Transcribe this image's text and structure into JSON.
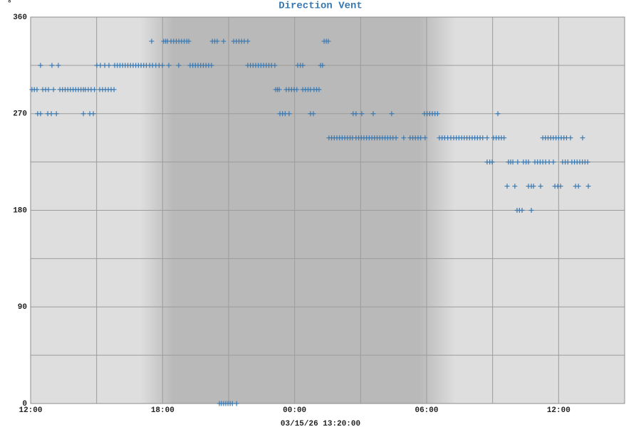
{
  "chart_data": {
    "type": "scatter",
    "title": "Direction Vent",
    "y_unit": "°",
    "x_label": "03/15/26 13:20:00",
    "color": "#3a78b0",
    "grid": true,
    "xlim": [
      0,
      27
    ],
    "xticks": [
      {
        "value": 0,
        "label": "12:00"
      },
      {
        "value": 6,
        "label": "18:00"
      },
      {
        "value": 12,
        "label": "00:00"
      },
      {
        "value": 18,
        "label": "06:00"
      },
      {
        "value": 24,
        "label": "12:00"
      }
    ],
    "ylim": [
      0,
      360
    ],
    "yticks": [
      0,
      90,
      180,
      270,
      360
    ],
    "x": [
      0.06,
      0.17,
      0.29,
      0.55,
      0.68,
      0.81,
      1.04,
      1.33,
      1.45,
      1.57,
      1.69,
      1.81,
      1.93,
      2.05,
      2.17,
      2.29,
      2.4,
      2.49,
      2.62,
      2.75,
      2.9,
      3.14,
      3.27,
      3.4,
      3.53,
      3.66,
      3.79,
      11.14,
      11.22,
      11.3,
      11.62,
      11.74,
      11.86,
      11.98,
      12.1,
      12.37,
      12.49,
      12.61,
      12.72,
      12.88,
      13.0,
      13.11,
      0.32,
      0.45,
      0.78,
      0.94,
      1.17,
      2.4,
      2.69,
      2.85,
      11.33,
      11.45,
      11.57,
      11.75,
      12.72,
      12.85,
      14.66,
      14.79,
      15.05,
      15.57,
      16.41,
      17.9,
      18.02,
      18.14,
      18.26,
      18.38,
      18.5,
      21.24,
      0.45,
      0.97,
      1.26,
      3.01,
      3.17,
      3.37,
      3.56,
      3.82,
      3.94,
      4.06,
      4.18,
      4.3,
      4.42,
      4.54,
      4.66,
      4.78,
      4.9,
      5.02,
      5.14,
      5.26,
      5.41,
      5.54,
      5.69,
      5.84,
      5.99,
      6.28,
      6.73,
      7.25,
      7.37,
      7.49,
      7.61,
      7.73,
      7.85,
      7.97,
      8.09,
      8.22,
      9.87,
      9.99,
      10.11,
      10.23,
      10.35,
      10.47,
      10.59,
      10.71,
      10.83,
      10.95,
      11.1,
      12.14,
      12.26,
      12.37,
      13.18,
      13.27,
      5.5,
      6.05,
      6.14,
      6.22,
      6.38,
      6.5,
      6.62,
      6.74,
      6.86,
      6.98,
      7.1,
      7.19,
      8.26,
      8.37,
      8.48,
      8.77,
      9.23,
      9.35,
      9.47,
      9.59,
      9.71,
      9.87,
      13.34,
      13.44,
      13.53,
      13.56,
      13.68,
      13.8,
      13.92,
      14.04,
      14.16,
      14.28,
      14.4,
      14.52,
      14.63,
      14.79,
      14.91,
      15.03,
      15.15,
      15.27,
      15.39,
      15.51,
      15.63,
      15.75,
      15.87,
      15.99,
      16.11,
      16.23,
      16.35,
      16.47,
      16.61,
      16.96,
      17.25,
      17.37,
      17.49,
      17.61,
      17.73,
      17.93,
      18.58,
      18.7,
      18.82,
      18.96,
      19.1,
      19.23,
      19.35,
      19.47,
      19.59,
      19.71,
      19.83,
      19.95,
      20.07,
      20.19,
      20.31,
      20.43,
      20.55,
      20.75,
      21.04,
      21.16,
      21.28,
      21.4,
      21.52,
      23.28,
      23.4,
      23.52,
      23.64,
      23.76,
      23.88,
      24.0,
      24.12,
      24.24,
      24.36,
      24.54,
      25.09,
      20.75,
      20.87,
      20.98,
      21.72,
      21.82,
      21.92,
      22.14,
      22.4,
      22.52,
      22.63,
      22.92,
      23.04,
      23.16,
      23.28,
      23.41,
      23.57,
      23.76,
      24.18,
      24.3,
      24.42,
      24.6,
      24.72,
      24.84,
      24.96,
      25.08,
      25.2,
      25.32,
      21.66,
      22.01,
      22.63,
      22.76,
      22.86,
      23.18,
      23.83,
      23.96,
      24.09,
      24.77,
      24.9,
      25.35,
      22.11,
      22.22,
      22.34,
      22.76,
      8.58,
      8.67,
      8.77,
      8.87,
      8.97,
      9.07,
      9.17,
      9.36
    ],
    "values": [
      292.5,
      292.5,
      292.5,
      292.5,
      292.5,
      292.5,
      292.5,
      292.5,
      292.5,
      292.5,
      292.5,
      292.5,
      292.5,
      292.5,
      292.5,
      292.5,
      292.5,
      292.5,
      292.5,
      292.5,
      292.5,
      292.5,
      292.5,
      292.5,
      292.5,
      292.5,
      292.5,
      292.5,
      292.5,
      292.5,
      292.5,
      292.5,
      292.5,
      292.5,
      292.5,
      292.5,
      292.5,
      292.5,
      292.5,
      292.5,
      292.5,
      292.5,
      270,
      270,
      270,
      270,
      270,
      270,
      270,
      270,
      270,
      270,
      270,
      270,
      270,
      270,
      270,
      270,
      270,
      270,
      270,
      270,
      270,
      270,
      270,
      270,
      270,
      270,
      315,
      315,
      315,
      315,
      315,
      315,
      315,
      315,
      315,
      315,
      315,
      315,
      315,
      315,
      315,
      315,
      315,
      315,
      315,
      315,
      315,
      315,
      315,
      315,
      315,
      315,
      315,
      315,
      315,
      315,
      315,
      315,
      315,
      315,
      315,
      315,
      315,
      315,
      315,
      315,
      315,
      315,
      315,
      315,
      315,
      315,
      315,
      315,
      315,
      315,
      315,
      315,
      337.5,
      337.5,
      337.5,
      337.5,
      337.5,
      337.5,
      337.5,
      337.5,
      337.5,
      337.5,
      337.5,
      337.5,
      337.5,
      337.5,
      337.5,
      337.5,
      337.5,
      337.5,
      337.5,
      337.5,
      337.5,
      337.5,
      337.5,
      337.5,
      337.5,
      247.5,
      247.5,
      247.5,
      247.5,
      247.5,
      247.5,
      247.5,
      247.5,
      247.5,
      247.5,
      247.5,
      247.5,
      247.5,
      247.5,
      247.5,
      247.5,
      247.5,
      247.5,
      247.5,
      247.5,
      247.5,
      247.5,
      247.5,
      247.5,
      247.5,
      247.5,
      247.5,
      247.5,
      247.5,
      247.5,
      247.5,
      247.5,
      247.5,
      247.5,
      247.5,
      247.5,
      247.5,
      247.5,
      247.5,
      247.5,
      247.5,
      247.5,
      247.5,
      247.5,
      247.5,
      247.5,
      247.5,
      247.5,
      247.5,
      247.5,
      247.5,
      247.5,
      247.5,
      247.5,
      247.5,
      247.5,
      247.5,
      247.5,
      247.5,
      247.5,
      247.5,
      247.5,
      247.5,
      247.5,
      247.5,
      247.5,
      247.5,
      247.5,
      225,
      225,
      225,
      225,
      225,
      225,
      225,
      225,
      225,
      225,
      225,
      225,
      225,
      225,
      225,
      225,
      225,
      225,
      225,
      225,
      225,
      225,
      225,
      225,
      225,
      225,
      225,
      202.5,
      202.5,
      202.5,
      202.5,
      202.5,
      202.5,
      202.5,
      202.5,
      202.5,
      202.5,
      202.5,
      202.5,
      180,
      180,
      180,
      180,
      0,
      0,
      0,
      0,
      0,
      0,
      0,
      0
    ]
  }
}
